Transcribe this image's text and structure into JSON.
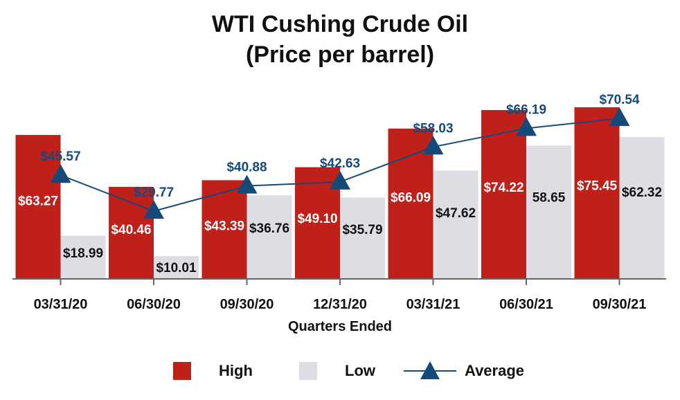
{
  "chart_data": {
    "type": "bar",
    "title": "WTI Cushing Crude Oil",
    "subtitle": "(Price per barrel)",
    "xlabel": "Quarters Ended",
    "ylabel": "",
    "ylim": [
      0,
      85
    ],
    "grid": false,
    "legend_position": "bottom",
    "categories": [
      "03/31/20",
      "06/30/20",
      "09/30/20",
      "12/31/20",
      "03/31/21",
      "06/30/21",
      "09/30/21"
    ],
    "series": [
      {
        "name": "High",
        "kind": "bar",
        "color": "#c0201a",
        "values": [
          63.27,
          40.46,
          43.39,
          49.1,
          66.09,
          74.22,
          75.45
        ],
        "labels": [
          "$63.27",
          "$40.46",
          "$43.39",
          "$49.10",
          "$66.09",
          "$74.22",
          "$75.45"
        ]
      },
      {
        "name": "Low",
        "kind": "bar",
        "color": "#dddee4",
        "values": [
          18.99,
          10.01,
          36.76,
          35.79,
          47.62,
          58.65,
          62.32
        ],
        "labels": [
          "$18.99",
          "$10.01",
          "$36.76",
          "$35.79",
          "$47.62",
          "58.65",
          "$62.32"
        ]
      },
      {
        "name": "Average",
        "kind": "line",
        "color": "#144a7a",
        "values": [
          45.57,
          29.77,
          40.88,
          42.63,
          58.03,
          66.19,
          70.54
        ],
        "labels": [
          "$45.57",
          "$29.77",
          "$40.88",
          "$42.63",
          "$58.03",
          "$66.19",
          "$70.54"
        ]
      }
    ]
  }
}
